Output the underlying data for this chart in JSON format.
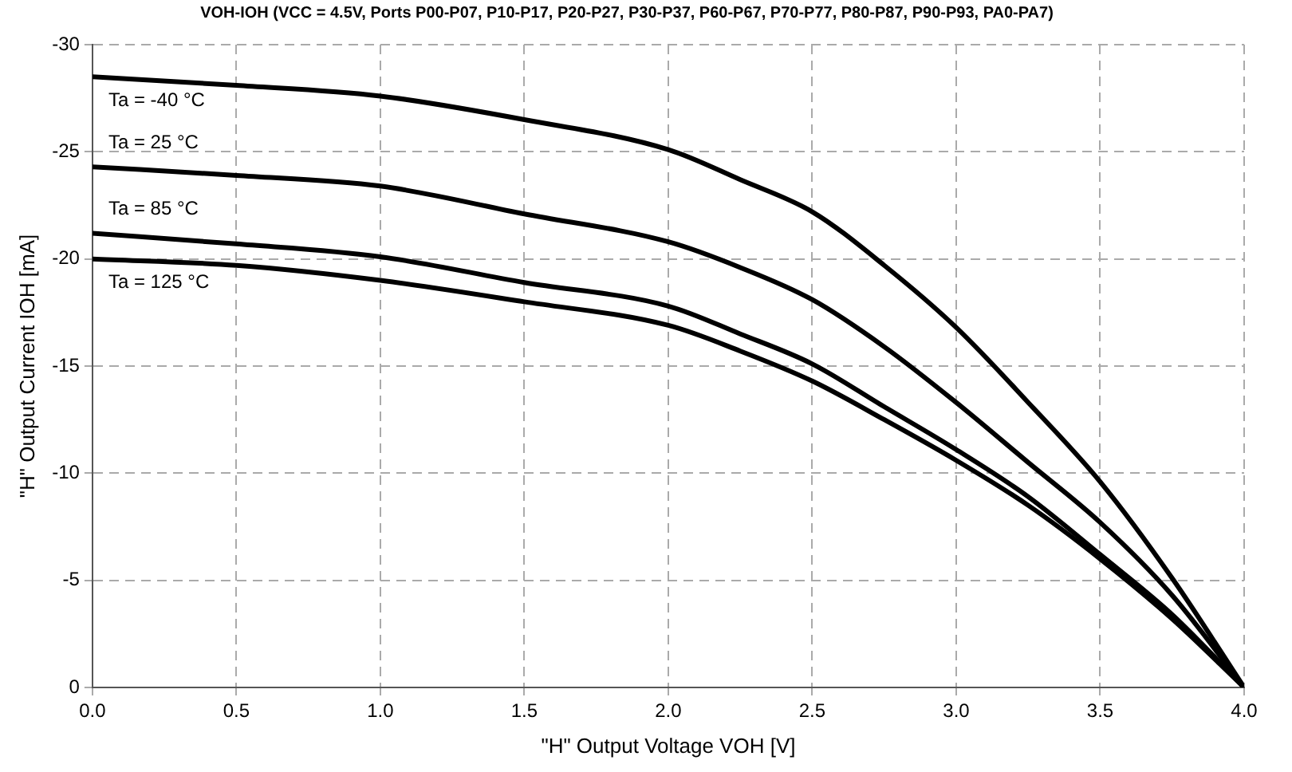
{
  "chart_data": {
    "type": "line",
    "title": "VOH-IOH (VCC = 4.5V, Ports P00-P07, P10-P17, P20-P27, P30-P37, P60-P67, P70-P77, P80-P87, P90-P93, PA0-PA7)",
    "xlabel": "\"H\" Output Voltage VOH [V]",
    "ylabel": "\"H\" Output Current IOH [mA]",
    "x": [
      0,
      0.5,
      1.0,
      1.5,
      2.0,
      2.25,
      2.5,
      2.75,
      3.0,
      3.25,
      3.5,
      3.75,
      4.0
    ],
    "series": [
      {
        "name": "Ta = -40 °C",
        "color": "#000000",
        "values": [
          -28.5,
          -28.1,
          -27.6,
          -26.5,
          -25.1,
          -23.7,
          -22.2,
          -19.7,
          -16.8,
          -13.3,
          -9.6,
          -5.1,
          0
        ]
      },
      {
        "name": "Ta = 25 °C",
        "color": "#000000",
        "values": [
          -24.3,
          -23.9,
          -23.4,
          -22.1,
          -20.8,
          -19.6,
          -18.1,
          -15.9,
          -13.3,
          -10.5,
          -7.7,
          -4.3,
          0
        ]
      },
      {
        "name": "Ta = 85 °C",
        "color": "#000000",
        "values": [
          -21.2,
          -20.7,
          -20.1,
          -18.9,
          -17.8,
          -16.5,
          -15.1,
          -13.1,
          -11.1,
          -8.9,
          -6.2,
          -3.4,
          0
        ]
      },
      {
        "name": "Ta = 125 °C",
        "color": "#000000",
        "values": [
          -20.0,
          -19.7,
          -19.0,
          -18.0,
          -16.9,
          -15.7,
          -14.3,
          -12.5,
          -10.6,
          -8.5,
          -6.0,
          -3.2,
          0
        ]
      }
    ],
    "xlim": [
      0,
      4
    ],
    "xticks": [
      {
        "value": 0,
        "label": "0.0"
      },
      {
        "value": 0.5,
        "label": "0.5"
      },
      {
        "value": 1,
        "label": "1.0"
      },
      {
        "value": 1.5,
        "label": "1.5"
      },
      {
        "value": 2,
        "label": "2.0"
      },
      {
        "value": 2.5,
        "label": "2.5"
      },
      {
        "value": 3,
        "label": "3.0"
      },
      {
        "value": 3.5,
        "label": "3.5"
      },
      {
        "value": 4,
        "label": "4.0"
      }
    ],
    "ylim": [
      0,
      -30
    ],
    "yticks": [
      0,
      -5,
      -10,
      -15,
      -20,
      -25,
      -30
    ],
    "grid": true,
    "legend": false,
    "marker": "none",
    "line_style": "solid"
  }
}
